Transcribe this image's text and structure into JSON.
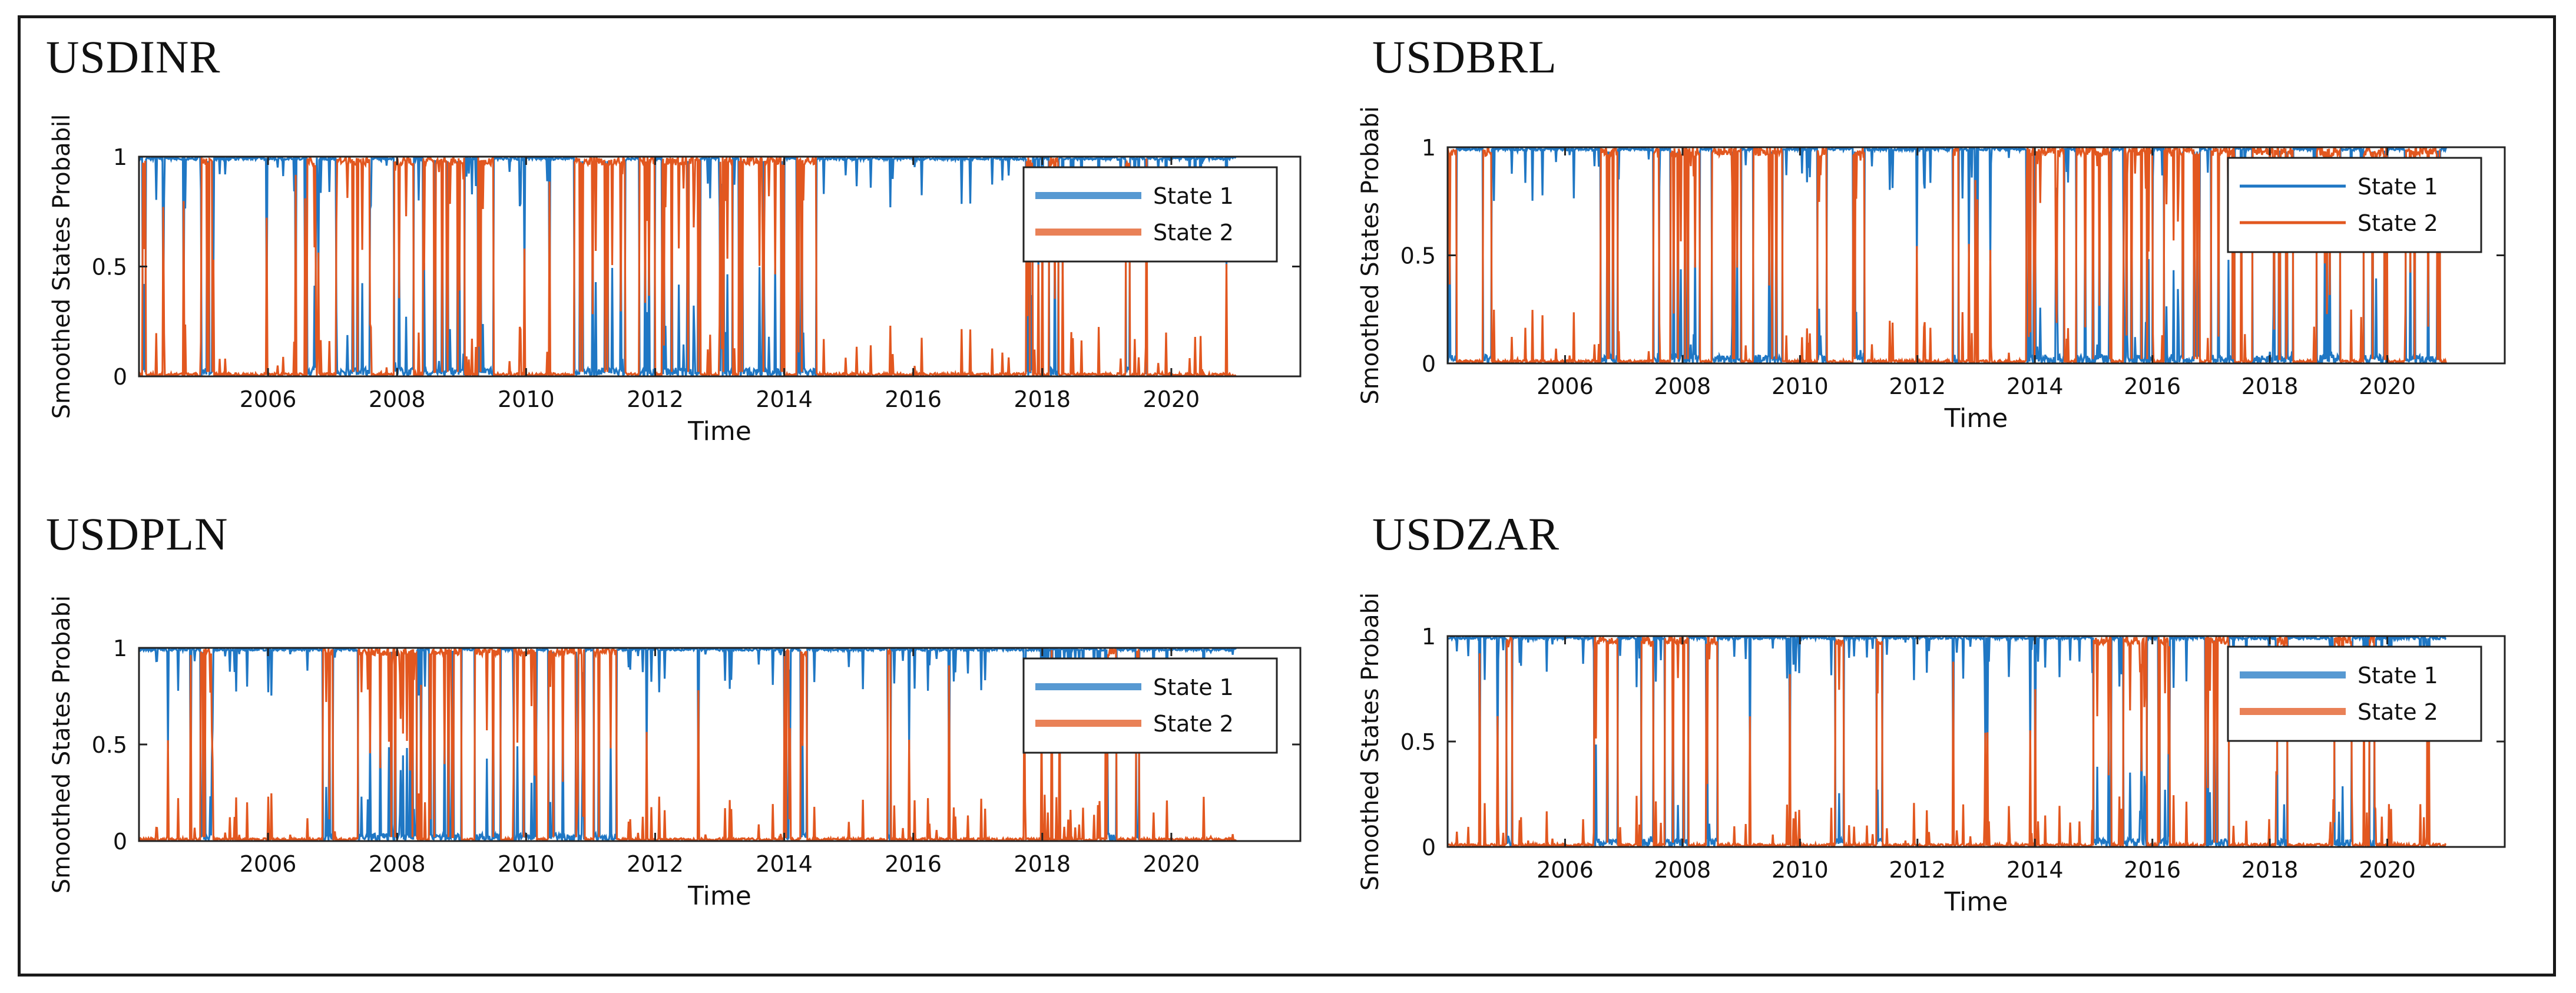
{
  "colors": {
    "state1": "#1f77c4",
    "state2": "#e2571f",
    "axis": "#222222"
  },
  "chart_data": [
    {
      "title": "USDINR",
      "type": "line",
      "xlabel": "Time",
      "ylabel": "Smoothed States Probabil",
      "xlim": [
        2004.0,
        2022.0
      ],
      "ylim": [
        0,
        1
      ],
      "xticks": [
        "2006",
        "2008",
        "2010",
        "2012",
        "2014",
        "2016",
        "2018",
        "2020"
      ],
      "yticks": [
        "0",
        "0.5",
        "1"
      ],
      "legend": {
        "position": "top-right",
        "entries": [
          "State 1",
          "State 2"
        ],
        "thick": true
      },
      "series": [
        {
          "name": "State 1",
          "values_note": "complement of State 2"
        },
        {
          "name": "State 2",
          "regimes": [
            [
              2004.05,
              2004.1
            ],
            [
              2004.95,
              2005.15
            ],
            [
              2006.6,
              2006.75
            ],
            [
              2007.05,
              2007.6
            ],
            [
              2007.95,
              2008.25
            ],
            [
              2008.4,
              2009.05
            ],
            [
              2009.25,
              2009.5
            ],
            [
              2010.75,
              2011.55
            ],
            [
              2011.75,
              2012.0
            ],
            [
              2012.1,
              2012.7
            ],
            [
              2013.0,
              2013.2
            ],
            [
              2013.3,
              2014.0
            ],
            [
              2014.2,
              2014.5
            ],
            [
              2017.75,
              2017.85
            ],
            [
              2018.1,
              2018.25
            ],
            [
              2019.3,
              2019.35
            ]
          ],
          "end": 2021.0
        }
      ]
    },
    {
      "title": "USDBRL",
      "type": "line",
      "xlabel": "Time",
      "ylabel": "Smoothed States Probabi",
      "xlim": [
        2004.0,
        2022.0
      ],
      "ylim": [
        0,
        1
      ],
      "xticks": [
        "2006",
        "2008",
        "2010",
        "2012",
        "2014",
        "2016",
        "2018",
        "2020"
      ],
      "yticks": [
        "0",
        "0.5",
        "1"
      ],
      "legend": {
        "position": "top-right",
        "entries": [
          "State 1",
          "State 2"
        ],
        "thick": false
      },
      "series": [
        {
          "name": "State 1",
          "values_note": "complement of State 2"
        },
        {
          "name": "State 2",
          "regimes": [
            [
              2004.0,
              2004.15
            ],
            [
              2004.6,
              2004.75
            ],
            [
              2006.6,
              2006.9
            ],
            [
              2007.5,
              2007.6
            ],
            [
              2007.8,
              2008.3
            ],
            [
              2008.5,
              2009.0
            ],
            [
              2009.2,
              2009.7
            ],
            [
              2010.3,
              2010.45
            ],
            [
              2010.9,
              2011.1
            ],
            [
              2012.6,
              2012.7
            ],
            [
              2013.85,
              2014.5
            ],
            [
              2014.7,
              2015.3
            ],
            [
              2015.5,
              2016.0
            ],
            [
              2016.2,
              2016.8
            ],
            [
              2017.0,
              2017.4
            ],
            [
              2017.7,
              2018.4
            ],
            [
              2018.8,
              2019.2
            ],
            [
              2019.6,
              2020.0
            ],
            [
              2020.3,
              2020.9
            ]
          ],
          "end": 2021.0
        }
      ]
    },
    {
      "title": "USDPLN",
      "type": "line",
      "xlabel": "Time",
      "ylabel": "Smoothed States Probabi",
      "xlim": [
        2004.0,
        2022.0
      ],
      "ylim": [
        0,
        1
      ],
      "xticks": [
        "2006",
        "2008",
        "2010",
        "2012",
        "2014",
        "2016",
        "2018",
        "2020"
      ],
      "yticks": [
        "0",
        "0.5",
        "1"
      ],
      "legend": {
        "position": "top-right",
        "entries": [
          "State 1",
          "State 2"
        ],
        "thick": true
      },
      "series": [
        {
          "name": "State 1",
          "values_note": "complement of State 2"
        },
        {
          "name": "State 2",
          "regimes": [
            [
              2004.95,
              2005.15
            ],
            [
              2006.85,
              2007.0
            ],
            [
              2007.4,
              2008.3
            ],
            [
              2008.5,
              2009.0
            ],
            [
              2009.2,
              2009.6
            ],
            [
              2009.8,
              2010.15
            ],
            [
              2010.35,
              2010.9
            ],
            [
              2011.05,
              2011.4
            ],
            [
              2014.0,
              2014.1
            ],
            [
              2014.25,
              2014.35
            ],
            [
              2015.6,
              2015.65
            ],
            [
              2019.0,
              2019.15
            ],
            [
              2019.45,
              2019.5
            ]
          ],
          "end": 2021.0
        }
      ]
    },
    {
      "title": "USDZAR",
      "type": "line",
      "xlabel": "Time",
      "ylabel": "Smoothed States Probabi",
      "xlim": [
        2004.0,
        2022.0
      ],
      "ylim": [
        0,
        1
      ],
      "xticks": [
        "2006",
        "2008",
        "2010",
        "2012",
        "2014",
        "2016",
        "2018",
        "2020"
      ],
      "yticks": [
        "0",
        "0.5",
        "1"
      ],
      "legend": {
        "position": "top-right",
        "entries": [
          "State 1",
          "State 2"
        ],
        "thick": true
      },
      "series": [
        {
          "name": "State 1",
          "values_note": "complement of State 2"
        },
        {
          "name": "State 2",
          "regimes": [
            [
              2005.0,
              2005.1
            ],
            [
              2006.5,
              2006.9
            ],
            [
              2007.3,
              2007.5
            ],
            [
              2007.7,
              2008.1
            ],
            [
              2008.4,
              2008.6
            ],
            [
              2010.6,
              2010.75
            ],
            [
              2011.3,
              2011.4
            ],
            [
              2015.0,
              2015.3
            ],
            [
              2015.5,
              2015.9
            ],
            [
              2016.1,
              2016.3
            ],
            [
              2016.9,
              2017.3
            ],
            [
              2018.1,
              2018.3
            ],
            [
              2019.1,
              2019.4
            ],
            [
              2019.7,
              2019.8
            ]
          ],
          "end": 2021.0
        }
      ]
    }
  ]
}
